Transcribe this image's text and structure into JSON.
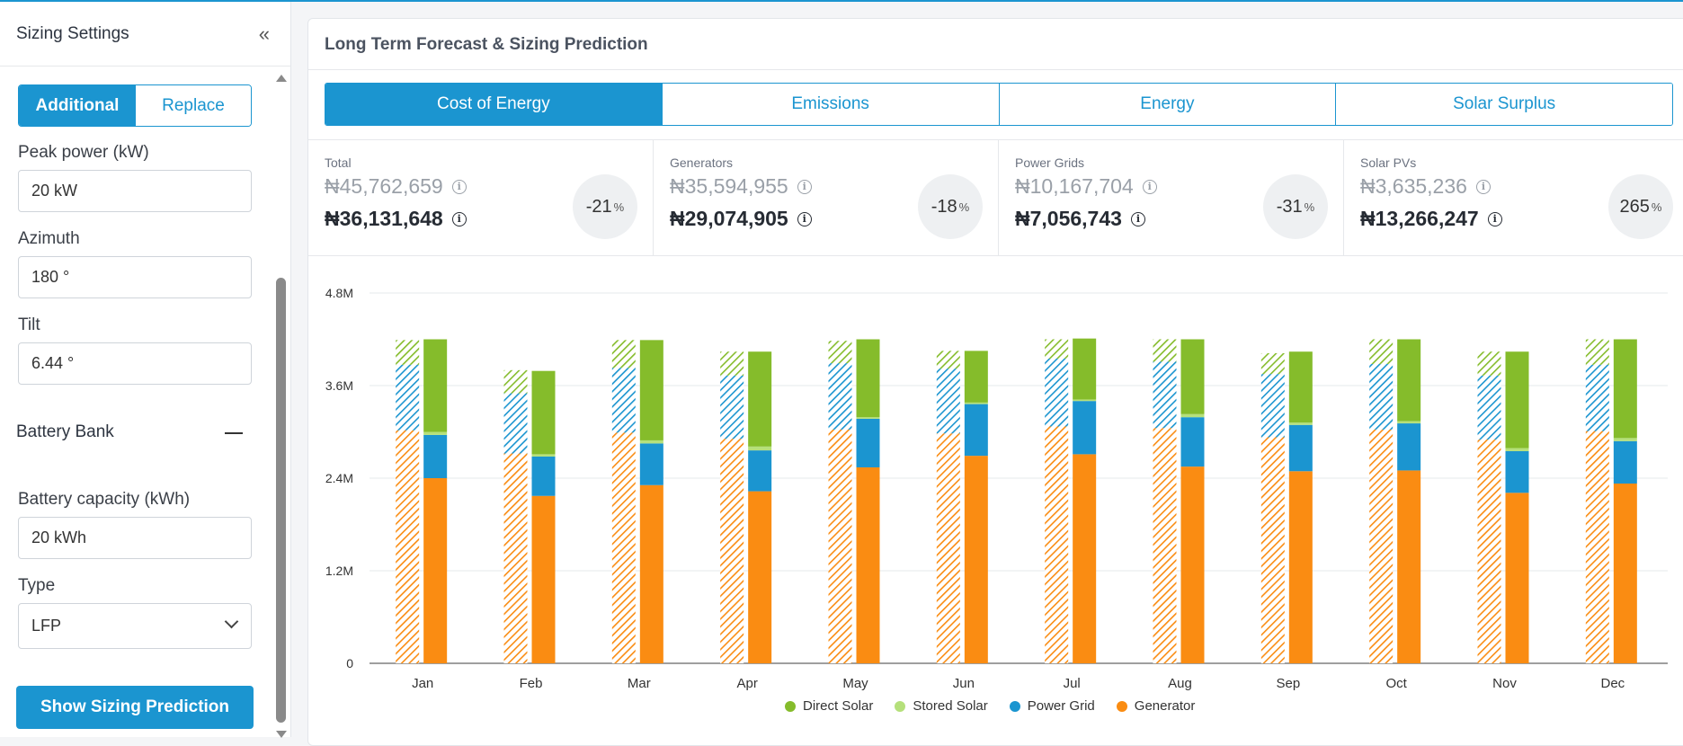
{
  "sidebar": {
    "title": "Sizing Settings",
    "collapse_icon": "«",
    "mode": {
      "options": [
        "Additional",
        "Replace"
      ],
      "selected": "Additional"
    },
    "peak_power": {
      "label": "Peak power (kW)",
      "value": "20 kW"
    },
    "azimuth": {
      "label": "Azimuth",
      "value": "180 °"
    },
    "tilt": {
      "label": "Tilt",
      "value": "6.44 °"
    },
    "battery_section": {
      "title": "Battery Bank"
    },
    "battery_capacity": {
      "label": "Battery capacity (kWh)",
      "value": "20 kWh"
    },
    "type": {
      "label": "Type",
      "value": "LFP"
    },
    "submit_label": "Show Sizing Prediction"
  },
  "main": {
    "title": "Long Term Forecast & Sizing Prediction",
    "tabs": [
      "Cost of Energy",
      "Emissions",
      "Energy",
      "Solar Surplus"
    ],
    "active_tab": "Cost of Energy",
    "stats": [
      {
        "label": "Total",
        "old": "₦45,762,659",
        "new": "₦36,131,648",
        "change": "-21",
        "unit": "%"
      },
      {
        "label": "Generators",
        "old": "₦35,594,955",
        "new": "₦29,074,905",
        "change": "-18",
        "unit": "%"
      },
      {
        "label": "Power Grids",
        "old": "₦10,167,704",
        "new": "₦7,056,743",
        "change": "-31",
        "unit": "%"
      },
      {
        "label": "Solar PVs",
        "old": "₦3,635,236",
        "new": "₦13,266,247",
        "change": "265",
        "unit": "%"
      }
    ]
  },
  "colors": {
    "accent": "#1b95d0",
    "direct_solar": "#85bc2b",
    "stored_solar": "#b5e07b",
    "power_grid": "#1b95d0",
    "generator": "#fa8c12"
  },
  "chart_data": {
    "type": "bar",
    "stacked": true,
    "categories": [
      "Jan",
      "Feb",
      "Mar",
      "Apr",
      "May",
      "Jun",
      "Jul",
      "Aug",
      "Sep",
      "Oct",
      "Nov",
      "Dec"
    ],
    "ylim": [
      0,
      4800000
    ],
    "yticks": [
      0,
      1200000,
      2400000,
      3600000,
      4800000
    ],
    "ytick_labels": [
      "0",
      "1.2M",
      "2.4M",
      "3.6M",
      "4.8M"
    ],
    "legend": [
      "Direct Solar",
      "Stored Solar",
      "Power Grid",
      "Generator"
    ],
    "legend_position": "bottom",
    "bars": [
      {
        "month": "Jan",
        "baseline": {
          "generator": 3020000,
          "grid": 850000,
          "solar": 320000
        },
        "sized": {
          "generator": 2400000,
          "grid": 560000,
          "stored": 40000,
          "direct": 1200000
        }
      },
      {
        "month": "Feb",
        "baseline": {
          "generator": 2720000,
          "grid": 780000,
          "solar": 300000
        },
        "sized": {
          "generator": 2170000,
          "grid": 510000,
          "stored": 30000,
          "direct": 1080000
        }
      },
      {
        "month": "Mar",
        "baseline": {
          "generator": 2990000,
          "grid": 840000,
          "solar": 360000
        },
        "sized": {
          "generator": 2310000,
          "grid": 540000,
          "stored": 40000,
          "direct": 1300000
        }
      },
      {
        "month": "Apr",
        "baseline": {
          "generator": 2910000,
          "grid": 820000,
          "solar": 310000
        },
        "sized": {
          "generator": 2230000,
          "grid": 530000,
          "stored": 50000,
          "direct": 1230000
        }
      },
      {
        "month": "May",
        "baseline": {
          "generator": 3030000,
          "grid": 860000,
          "solar": 290000
        },
        "sized": {
          "generator": 2540000,
          "grid": 630000,
          "stored": 20000,
          "direct": 1010000
        }
      },
      {
        "month": "Jun",
        "baseline": {
          "generator": 2980000,
          "grid": 840000,
          "solar": 230000
        },
        "sized": {
          "generator": 2690000,
          "grid": 670000,
          "stored": 20000,
          "direct": 670000
        }
      },
      {
        "month": "Jul",
        "baseline": {
          "generator": 3070000,
          "grid": 880000,
          "solar": 250000
        },
        "sized": {
          "generator": 2710000,
          "grid": 690000,
          "stored": 20000,
          "direct": 790000
        }
      },
      {
        "month": "Aug",
        "baseline": {
          "generator": 3050000,
          "grid": 860000,
          "solar": 290000
        },
        "sized": {
          "generator": 2550000,
          "grid": 640000,
          "stored": 40000,
          "direct": 970000
        }
      },
      {
        "month": "Sep",
        "baseline": {
          "generator": 2930000,
          "grid": 820000,
          "solar": 270000
        },
        "sized": {
          "generator": 2490000,
          "grid": 600000,
          "stored": 30000,
          "direct": 920000
        }
      },
      {
        "month": "Oct",
        "baseline": {
          "generator": 3030000,
          "grid": 850000,
          "solar": 320000
        },
        "sized": {
          "generator": 2500000,
          "grid": 610000,
          "stored": 30000,
          "direct": 1060000
        }
      },
      {
        "month": "Nov",
        "baseline": {
          "generator": 2900000,
          "grid": 830000,
          "solar": 310000
        },
        "sized": {
          "generator": 2210000,
          "grid": 540000,
          "stored": 40000,
          "direct": 1250000
        }
      },
      {
        "month": "Dec",
        "baseline": {
          "generator": 3010000,
          "grid": 860000,
          "solar": 330000
        },
        "sized": {
          "generator": 2330000,
          "grid": 550000,
          "stored": 40000,
          "direct": 1280000
        }
      }
    ]
  }
}
